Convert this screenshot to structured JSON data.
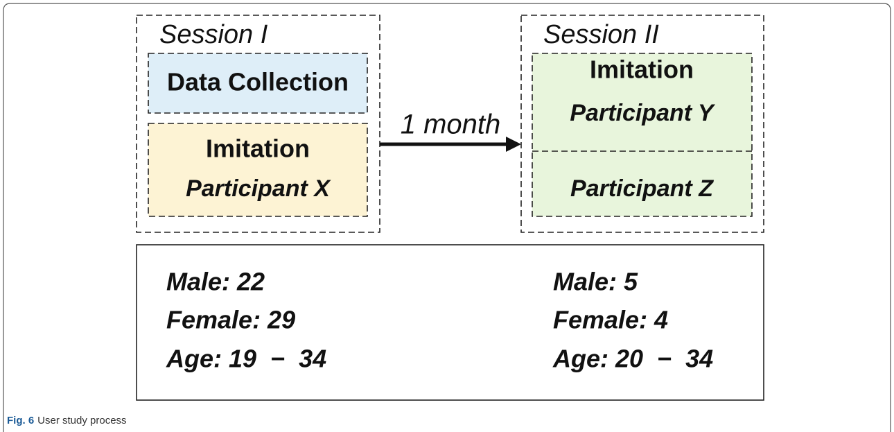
{
  "session_1": {
    "title": "Session I",
    "box_1": "Data Collection",
    "box_2_title": "Imitation",
    "box_2_subtitle": "Participant X"
  },
  "interval": "1 month",
  "session_2": {
    "title": "Session II",
    "box_1_title": "Imitation",
    "box_1_subtitle": "Participant Y",
    "box_2_subtitle": "Participant Z"
  },
  "stats": {
    "left": [
      "Male: 22",
      "Female: 29",
      "Age: 19  −  34"
    ],
    "right": [
      "Male: 5",
      "Female: 4",
      "Age: 20  −  34"
    ]
  },
  "caption": {
    "label": "Fig. 6",
    "text": "User study process"
  }
}
